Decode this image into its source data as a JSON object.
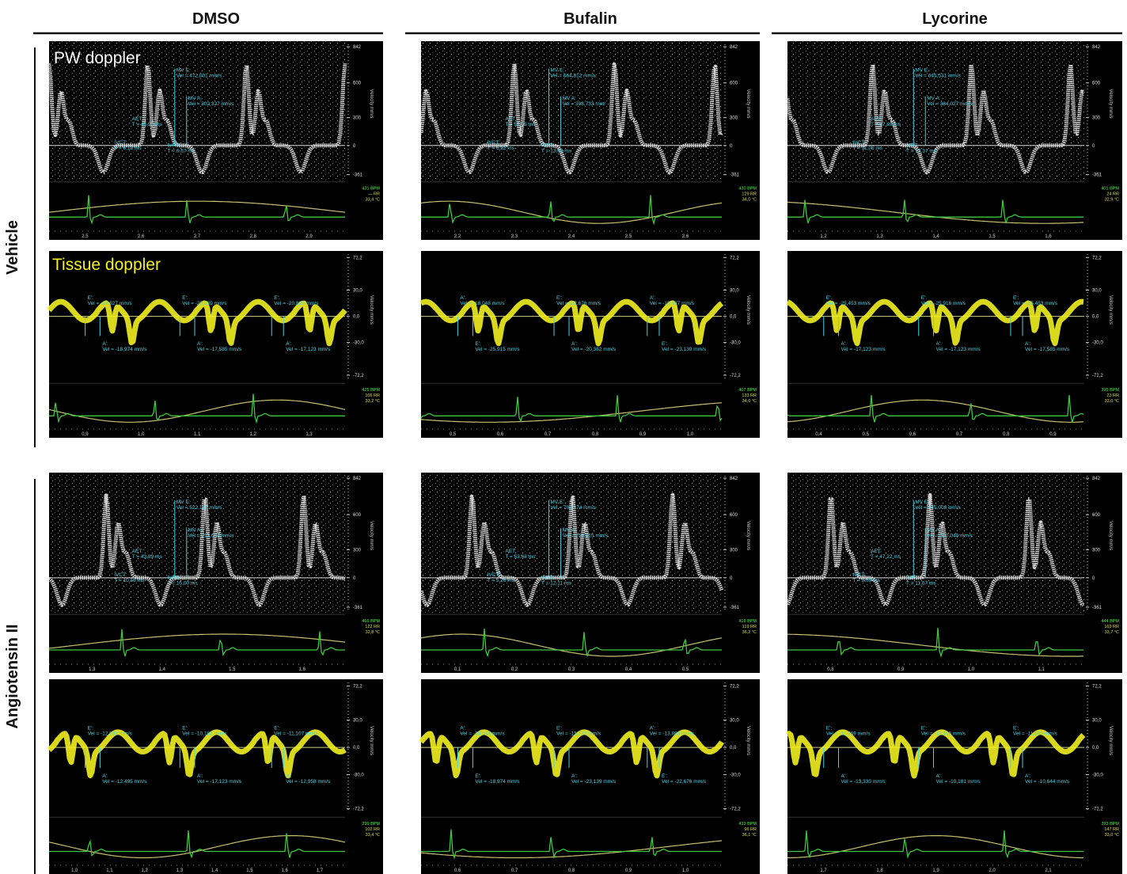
{
  "columns": [
    "DMSO",
    "Bufalin",
    "Lycorine"
  ],
  "pw_label": "PW doppler",
  "td_label": "Tissue doppler",
  "axis_title": "Velocity mm/s",
  "pw_yticks": [
    "842",
    "600",
    "300",
    "0",
    "-361"
  ],
  "td_yticks": [
    "72,2",
    "30,0",
    "0,0",
    "-30,0",
    "-72,2"
  ],
  "groups": [
    {
      "label": "Vehicle",
      "pw_panels": [
        {
          "xticks": [
            "2,5",
            "2,6",
            "2,7",
            "2,8",
            "2,9"
          ],
          "vitals": [
            "431 BPM",
            "— RR",
            "33,4 °C"
          ],
          "annotations": [
            {
              "label": "MV E:",
              "text": "Vel = 472,001 mm/s"
            },
            {
              "label": "MV A:",
              "text": "Vel = 302,327 mm/s"
            },
            {
              "label": "AET:",
              "text": "T = 45,56 ms"
            },
            {
              "label": "IVCT:",
              "text": "T = 6,13 ms"
            },
            {
              "label": "IVRT:",
              "text": "T = 6,67 ms"
            }
          ]
        },
        {
          "xticks": [
            "2,2",
            "2,3",
            "2,4",
            "2,5",
            "2,6"
          ],
          "vitals": [
            "430 BPM",
            "129 RR",
            "34,0 °C"
          ],
          "annotations": [
            {
              "label": "MV E:",
              "text": "Vel = 664,812 mm/s"
            },
            {
              "label": "MV A:",
              "text": "Vel = 398,733 mm/"
            },
            {
              "label": "AET:",
              "text": "T = 51,05 ms"
            },
            {
              "label": "IVCT:",
              "text": "T = 6,32 ms"
            },
            {
              "label": "IVRT:",
              "text": "T = 13,68 ms"
            }
          ]
        },
        {
          "xticks": [
            "1,2",
            "1,3",
            "1,4",
            "1,5",
            "1,6"
          ],
          "vitals": [
            "401 BPM",
            "24 RR",
            "32,9 °C"
          ],
          "annotations": [
            {
              "label": "MV E:",
              "text": "Vel = 645,531 mm/s"
            },
            {
              "label": "MV A:",
              "text": "Vel = 364,027 mm/s"
            },
            {
              "label": "AET:",
              "text": "T = 57,89 ms"
            },
            {
              "label": "IVCT:",
              "text": "T = 11,05 ms"
            },
            {
              "label": "IVRT:",
              "text": "T = 17,37 ms"
            }
          ]
        }
      ],
      "td_panels": [
        {
          "xticks": [
            "0,9",
            "1,0",
            "1,1",
            "1,2",
            "1,3"
          ],
          "vitals": [
            "425 BPM",
            "106 RR",
            "33,2 °C"
          ],
          "annotations": [
            {
              "label": "E':",
              "text": "Vel = -24,527 mm/s"
            },
            {
              "label": "E':",
              "text": "Vel = -23,139 mm/s"
            },
            {
              "label": "E':",
              "text": "Vel = -20,825 mm/s"
            },
            {
              "label": "A':",
              "text": "Vel = -18,974 mm/s"
            },
            {
              "label": "A':",
              "text": "Vel = -17,585 mm/s"
            },
            {
              "label": "A':",
              "text": "Vel = -17,123 mm/s"
            }
          ]
        },
        {
          "xticks": [
            "0,5",
            "0,6",
            "0,7",
            "0,8",
            "0,9",
            "1,0"
          ],
          "vitals": [
            "407 BPM",
            "133 RR",
            "34,0 °C"
          ],
          "annotations": [
            {
              "label": "A':",
              "text": "Vel = -18,048 mm/s"
            },
            {
              "label": "E':",
              "text": "Vel = -22,676 mm/s"
            },
            {
              "label": "A':",
              "text": "Vel = -19,437 mm/s"
            },
            {
              "label": "E':",
              "text": "Vel = -25,915 mm/s"
            },
            {
              "label": "A':",
              "text": "Vel = -20,362 mm/s"
            },
            {
              "label": "E':",
              "text": "Vel = -23,139 mm/s"
            }
          ]
        },
        {
          "xticks": [
            "0,4",
            "0,5",
            "0,6",
            "0,7",
            "0,8",
            "0,9"
          ],
          "vitals": [
            "395 BPM",
            "23 RR",
            "33,0 °C"
          ],
          "annotations": [
            {
              "label": "E':",
              "text": "Vel = -25,453 mm/s"
            },
            {
              "label": "E':",
              "text": "Vel = -25,916 mm/s"
            },
            {
              "label": "E':",
              "text": "Vel = -25,453 mm/s"
            },
            {
              "label": "A':",
              "text": "Vel = -17,123 mm/s"
            },
            {
              "label": "A':",
              "text": "Vel = -17,123 mm/s"
            },
            {
              "label": "A':",
              "text": "Vel = -17,585 mm/s"
            }
          ]
        }
      ]
    },
    {
      "label": "Angiotensin II",
      "pw_panels": [
        {
          "xticks": [
            "1,3",
            "1,4",
            "1,5",
            "1,6"
          ],
          "vitals": [
            "466 BPM",
            "122 RR",
            "32,8 °C"
          ],
          "annotations": [
            {
              "label": "MV E:",
              "text": "Vel = 522,132 mm/s"
            },
            {
              "label": "MV A:",
              "text": "Vel = 213,634 mm/s"
            },
            {
              "label": "AET:",
              "text": "T = 43,89 ms"
            },
            {
              "label": "IVCT:",
              "text": "T = 10,56 ms"
            },
            {
              "label": "IVRT:",
              "text": "T = 15,00 ms"
            }
          ]
        },
        {
          "xticks": [
            "0,1",
            "0,2",
            "0,3",
            "0,4",
            "0,5"
          ],
          "vitals": [
            "418 BPM",
            "119 RR",
            "36,2 °C"
          ],
          "annotations": [
            {
              "label": "MV E:",
              "text": "Vel = 703,374 mm/s"
            },
            {
              "label": "MV A:",
              "text": "Vel = 256,315 mm/s"
            },
            {
              "label": "AET:",
              "text": "T = 53,68 ms"
            },
            {
              "label": "IVCT:",
              "text": "T = 5,26 ms"
            },
            {
              "label": "IVRT:",
              "text": "T = 12,11 ms"
            }
          ]
        },
        {
          "xticks": [
            "0,8",
            "0,9",
            "1,0",
            "1,1"
          ],
          "vitals": [
            "444 BPM",
            "169 RR",
            "33,7 °C"
          ],
          "annotations": [
            {
              "label": "MV E:",
              "text": "Vel = 445,008 mm/s"
            },
            {
              "label": "MV A:",
              "text": "Vel = 310,040 mm/s"
            },
            {
              "label": "AET:",
              "text": "T = 47,22 ms"
            },
            {
              "label": "IVCT:",
              "text": "T = 8,69 ms"
            },
            {
              "label": "IVRT:",
              "text": "T = 11,67 ms"
            }
          ]
        }
      ],
      "td_panels": [
        {
          "xticks": [
            "1,0",
            "1,1",
            "1,2",
            "1,3",
            "1,4",
            "1,5",
            "1,6",
            "1,7"
          ],
          "vitals": [
            "299 BPM",
            "102 RR",
            "33,4 °C"
          ],
          "annotations": [
            {
              "label": "E':",
              "text": "Vel = -12,032 mm/s"
            },
            {
              "label": "E':",
              "text": "Vel = -10,181 mm/s"
            },
            {
              "label": "E':",
              "text": "Vel = -11,107 mm/s"
            },
            {
              "label": "A':",
              "text": "Vel = -12,495 mm/s"
            },
            {
              "label": "A':",
              "text": "Vel = -17,123 mm/s"
            },
            {
              "label": "A':",
              "text": "Vel = -12,958 mm/s"
            }
          ]
        },
        {
          "xticks": [
            "0,6",
            "0,7",
            "0,8",
            "0,9",
            "1,0"
          ],
          "vitals": [
            "433 BPM",
            "96 RR",
            "36,1 °C"
          ],
          "annotations": [
            {
              "label": "A':",
              "text": "Vel = -18,048 mm/s"
            },
            {
              "label": "E':",
              "text": "Vel = -15,272 mm/s"
            },
            {
              "label": "A':",
              "text": "Vel = -13,883 mm/s"
            },
            {
              "label": "E':",
              "text": "Vel = -18,974 mm/s"
            },
            {
              "label": "A':",
              "text": "Vel = -23,139 mm/s"
            },
            {
              "label": "E':",
              "text": "Vel = -22,676 mm/s"
            }
          ]
        },
        {
          "xticks": [
            "1,7",
            "1,8",
            "1,9",
            "2,0",
            "2,1"
          ],
          "vitals": [
            "393 BPM",
            "147 RR",
            "33,0 °C"
          ],
          "annotations": [
            {
              "label": "E':",
              "text": "Vel = -11,569 mm/s"
            },
            {
              "label": "E':",
              "text": "Vel = -12,495 mm/s"
            },
            {
              "label": "E':",
              "text": "Vel = -11,569 mm/s"
            },
            {
              "label": "A':",
              "text": "Vel = -13,330 mm/s"
            },
            {
              "label": "A':",
              "text": "Vel = -10,181 mm/s"
            },
            {
              "label": "A':",
              "text": "Vel = -10,644 mm/s"
            }
          ]
        }
      ]
    }
  ]
}
